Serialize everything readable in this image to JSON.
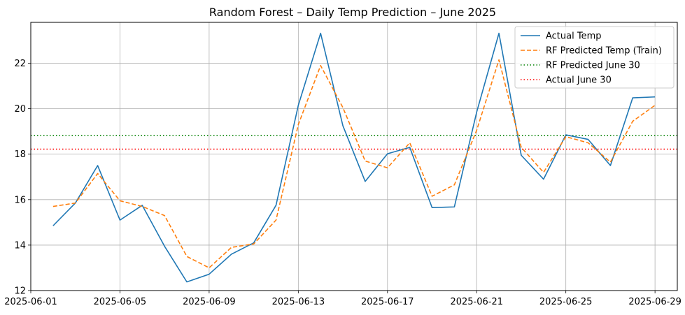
{
  "chart_data": {
    "type": "line",
    "title": "Random Forest – Daily Temp Prediction – June 2025",
    "xlabel": "",
    "ylabel": "",
    "x": [
      "2025-06-02",
      "2025-06-03",
      "2025-06-04",
      "2025-06-05",
      "2025-06-06",
      "2025-06-07",
      "2025-06-08",
      "2025-06-09",
      "2025-06-10",
      "2025-06-11",
      "2025-06-12",
      "2025-06-13",
      "2025-06-14",
      "2025-06-15",
      "2025-06-16",
      "2025-06-17",
      "2025-06-18",
      "2025-06-19",
      "2025-06-20",
      "2025-06-21",
      "2025-06-22",
      "2025-06-23",
      "2025-06-24",
      "2025-06-25",
      "2025-06-26",
      "2025-06-27",
      "2025-06-28",
      "2025-06-29"
    ],
    "xlim": [
      "2025-06-01",
      "2025-06-30"
    ],
    "ylim": [
      12,
      23.8
    ],
    "xticks": [
      "2025-06-01",
      "2025-06-05",
      "2025-06-09",
      "2025-06-13",
      "2025-06-17",
      "2025-06-21",
      "2025-06-25",
      "2025-06-29"
    ],
    "yticks": [
      12,
      14,
      16,
      18,
      20,
      22
    ],
    "grid": true,
    "legend_position": "top-right",
    "series": [
      {
        "name": "Actual Temp",
        "style": "solid",
        "color": "#1f77b4",
        "values": [
          14.85,
          15.85,
          17.5,
          15.1,
          15.75,
          13.95,
          12.38,
          12.72,
          13.6,
          14.1,
          15.75,
          20.15,
          23.32,
          19.25,
          16.8,
          18.02,
          18.3,
          15.65,
          15.68,
          19.85,
          23.32,
          17.95,
          16.9,
          18.85,
          18.65,
          17.5,
          20.48,
          20.52
        ]
      },
      {
        "name": "RF Predicted Temp (Train)",
        "style": "dashed",
        "color": "#ff7f0e",
        "values": [
          15.7,
          15.85,
          17.15,
          15.95,
          15.7,
          15.3,
          13.5,
          13.0,
          13.9,
          14.05,
          15.1,
          19.3,
          21.9,
          20.05,
          17.7,
          17.4,
          18.5,
          16.15,
          16.65,
          19.05,
          22.15,
          18.3,
          17.2,
          18.77,
          18.5,
          17.65,
          19.45,
          20.15
        ]
      },
      {
        "name": "RF Predicted June 30",
        "style": "dotted-hline",
        "color": "#008000",
        "value": 18.82
      },
      {
        "name": "Actual June 30",
        "style": "dotted-hline",
        "color": "#ff0000",
        "value": 18.22
      }
    ]
  }
}
